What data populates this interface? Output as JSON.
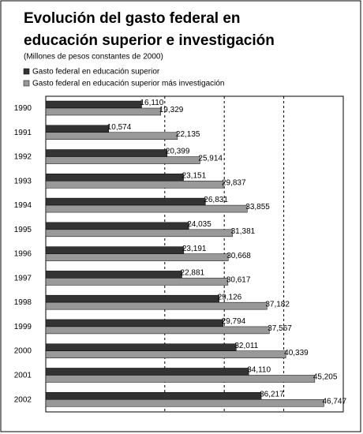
{
  "chart_data": {
    "type": "bar",
    "orientation": "horizontal",
    "title": [
      "Evolución del gasto federal en",
      "educación superior e investigación"
    ],
    "subtitle": "(Millones de pesos constantes de 2000)",
    "categories": [
      "1990",
      "1991",
      "1992",
      "1993",
      "1994",
      "1995",
      "1996",
      "1997",
      "1998",
      "1999",
      "2000",
      "2001",
      "2002"
    ],
    "series": [
      {
        "name": "Gasto federal en educación superior",
        "color": "#333333",
        "values": [
          16110,
          10574,
          20399,
          23151,
          26831,
          24035,
          23191,
          22881,
          29126,
          29794,
          32011,
          34110,
          36217
        ],
        "value_labels": [
          "16,110",
          "10,574",
          "20,399",
          "23,151",
          "26,831",
          "24,035",
          "23,191",
          "22,881",
          "29,126",
          "29,794",
          "32,011",
          "34,110",
          "36,217"
        ]
      },
      {
        "name": "Gasto federal en educación superior más investigación",
        "color": "#999999",
        "values": [
          19329,
          22135,
          25914,
          29837,
          33855,
          31381,
          30668,
          30617,
          37182,
          37567,
          40339,
          45205,
          46747
        ],
        "value_labels": [
          "19,329",
          "22,135",
          "25,914",
          "29,837",
          "33,855",
          "31,381",
          "30,668",
          "30,617",
          "37,182",
          "37,567",
          "40,339",
          "45,205",
          "46,747"
        ]
      }
    ],
    "xlim": [
      0,
      50000
    ],
    "xticks": [
      20000,
      30000,
      40000,
      50000
    ],
    "grid": true
  }
}
